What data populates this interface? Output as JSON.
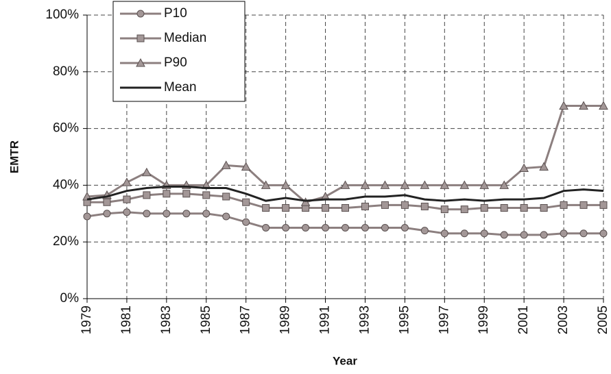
{
  "chart_data": {
    "type": "line",
    "x_label": "Year",
    "y_label": "EMTR",
    "x": [
      1979,
      1980,
      1981,
      1982,
      1983,
      1984,
      1985,
      1986,
      1987,
      1988,
      1989,
      1990,
      1991,
      1992,
      1993,
      1994,
      1995,
      1996,
      1997,
      1998,
      1999,
      2000,
      2001,
      2002,
      2003,
      2004,
      2005
    ],
    "series": [
      {
        "name": "P10",
        "color": "#8c7f7f",
        "marker": "circle",
        "values": [
          29,
          30,
          30.5,
          30,
          30,
          30,
          30,
          29,
          27,
          25,
          25,
          25,
          25,
          25,
          25,
          25,
          25,
          24,
          23,
          23,
          23,
          22.5,
          22.5,
          22.5,
          23,
          23,
          23
        ]
      },
      {
        "name": "Median",
        "color": "#8c7f7f",
        "marker": "square",
        "values": [
          34,
          34,
          35,
          36.5,
          37,
          37,
          36.5,
          36,
          34,
          32,
          32,
          32,
          32,
          32,
          32.5,
          33,
          33,
          32.5,
          31.5,
          31.5,
          32,
          32,
          32,
          32,
          33,
          33,
          33
        ]
      },
      {
        "name": "P90",
        "color": "#8c7f7f",
        "marker": "triangle",
        "values": [
          36,
          36.5,
          41,
          44.5,
          40,
          40,
          40,
          47,
          46.5,
          40,
          40,
          34,
          36,
          40,
          40,
          40,
          40,
          40,
          40,
          40,
          40,
          40,
          46,
          46.5,
          68,
          68,
          68
        ]
      },
      {
        "name": "Mean",
        "color": "#222222",
        "marker": "none",
        "values": [
          35,
          36,
          38,
          39,
          39.5,
          39.5,
          39,
          39,
          37,
          34.5,
          35.5,
          34.5,
          35,
          35,
          36,
          36,
          36.5,
          35,
          34.5,
          35,
          34.5,
          35,
          35,
          35.5,
          38,
          38.5,
          38
        ]
      }
    ],
    "xlim": [
      1979,
      2005
    ],
    "xticks": [
      1979,
      1981,
      1983,
      1985,
      1987,
      1989,
      1991,
      1993,
      1995,
      1997,
      1999,
      2001,
      2003,
      2005
    ],
    "ylim": [
      0,
      100
    ],
    "yticks": [
      {
        "value": 0,
        "label": "0%"
      },
      {
        "value": 20,
        "label": "20%"
      },
      {
        "value": 40,
        "label": "40%"
      },
      {
        "value": 60,
        "label": "60%"
      },
      {
        "value": 80,
        "label": "80%"
      },
      {
        "value": 100,
        "label": "100%"
      }
    ],
    "grid": true,
    "legend": "top-left"
  }
}
